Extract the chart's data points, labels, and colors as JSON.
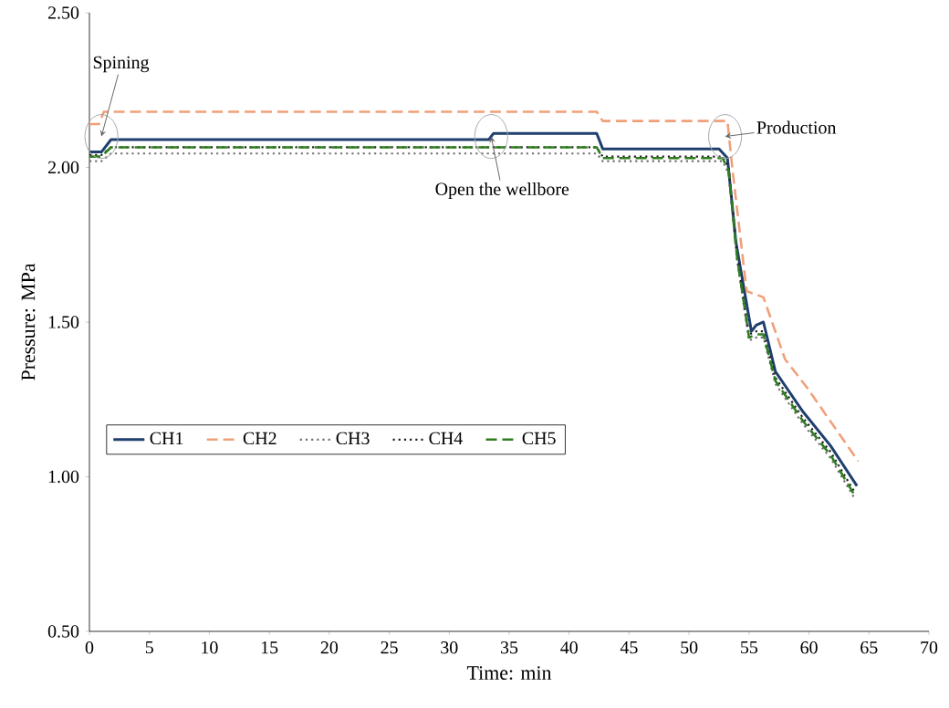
{
  "chart_data": {
    "type": "line",
    "xlabel": "Time: min",
    "ylabel": "Pressure: MPa",
    "xlim": [
      0,
      70
    ],
    "xticks": [
      0,
      5,
      10,
      15,
      20,
      25,
      30,
      35,
      40,
      45,
      50,
      55,
      60,
      65,
      70
    ],
    "ylim": [
      0.5,
      2.5
    ],
    "yticks": [
      {
        "value": 0.5,
        "label": "0.50"
      },
      {
        "value": 1.0,
        "label": "1.00"
      },
      {
        "value": 1.5,
        "label": "1.50"
      },
      {
        "value": 2.0,
        "label": "2.00"
      },
      {
        "value": 2.5,
        "label": "2.50"
      }
    ],
    "grid": false,
    "legend": "left",
    "marker": "none",
    "series": [
      {
        "name": "CH1",
        "color": "#1f3f6e",
        "line_style": "solid",
        "x": [
          0,
          1,
          1.8,
          33.3,
          33.7,
          42.3,
          42.8,
          52.5,
          53.2,
          53.9,
          55.2,
          55.6,
          56.2,
          57.2,
          59.5,
          61.8,
          64.0
        ],
        "values": [
          2.05,
          2.05,
          2.09,
          2.09,
          2.11,
          2.11,
          2.06,
          2.06,
          2.03,
          1.76,
          1.47,
          1.49,
          1.5,
          1.34,
          1.21,
          1.1,
          0.97
        ]
      },
      {
        "name": "CH2",
        "color": "#f0a078",
        "line_style": "dashed",
        "x": [
          0,
          0.8,
          1.2,
          42.3,
          42.8,
          53.2,
          53.6,
          54.8,
          56.2,
          58.0,
          59.8,
          64.1
        ],
        "values": [
          2.14,
          2.14,
          2.18,
          2.18,
          2.15,
          2.15,
          2.0,
          1.6,
          1.58,
          1.38,
          1.29,
          1.05
        ]
      },
      {
        "name": "CH3",
        "color": "#707070",
        "line_style": "dotted",
        "x": [
          0,
          1,
          1.8,
          42.3,
          42.8,
          52.8,
          53.3,
          54.0,
          55.0,
          55.6,
          56.2,
          57.2,
          59.5,
          61.8,
          63.8
        ],
        "values": [
          2.02,
          2.02,
          2.045,
          2.045,
          2.02,
          2.02,
          1.98,
          1.7,
          1.44,
          1.45,
          1.45,
          1.3,
          1.17,
          1.06,
          0.93
        ]
      },
      {
        "name": "CH4",
        "color": "#202020",
        "line_style": "dotted",
        "x": [
          0,
          1,
          1.8,
          42.3,
          42.8,
          52.8,
          53.3,
          54.0,
          55.0,
          55.6,
          56.2,
          57.2,
          59.5,
          61.8,
          63.8
        ],
        "values": [
          2.04,
          2.04,
          2.065,
          2.065,
          2.035,
          2.035,
          2.0,
          1.72,
          1.46,
          1.47,
          1.47,
          1.32,
          1.19,
          1.08,
          0.95
        ]
      },
      {
        "name": "CH5",
        "color": "#2e7d1f",
        "line_style": "dashed",
        "x": [
          0,
          1,
          1.8,
          42.3,
          42.8,
          52.8,
          53.3,
          54.0,
          55.0,
          55.6,
          56.2,
          57.2,
          59.5,
          61.8,
          63.8
        ],
        "values": [
          2.035,
          2.035,
          2.065,
          2.065,
          2.03,
          2.03,
          1.99,
          1.71,
          1.45,
          1.46,
          1.46,
          1.31,
          1.18,
          1.07,
          0.94
        ]
      }
    ],
    "annotations": [
      {
        "text": "Spining",
        "x": 1,
        "y": 2.1
      },
      {
        "text": "Open the wellbore",
        "x": 33.5,
        "y": 2.1
      },
      {
        "text": "Production",
        "x": 53,
        "y": 2.1
      }
    ]
  }
}
